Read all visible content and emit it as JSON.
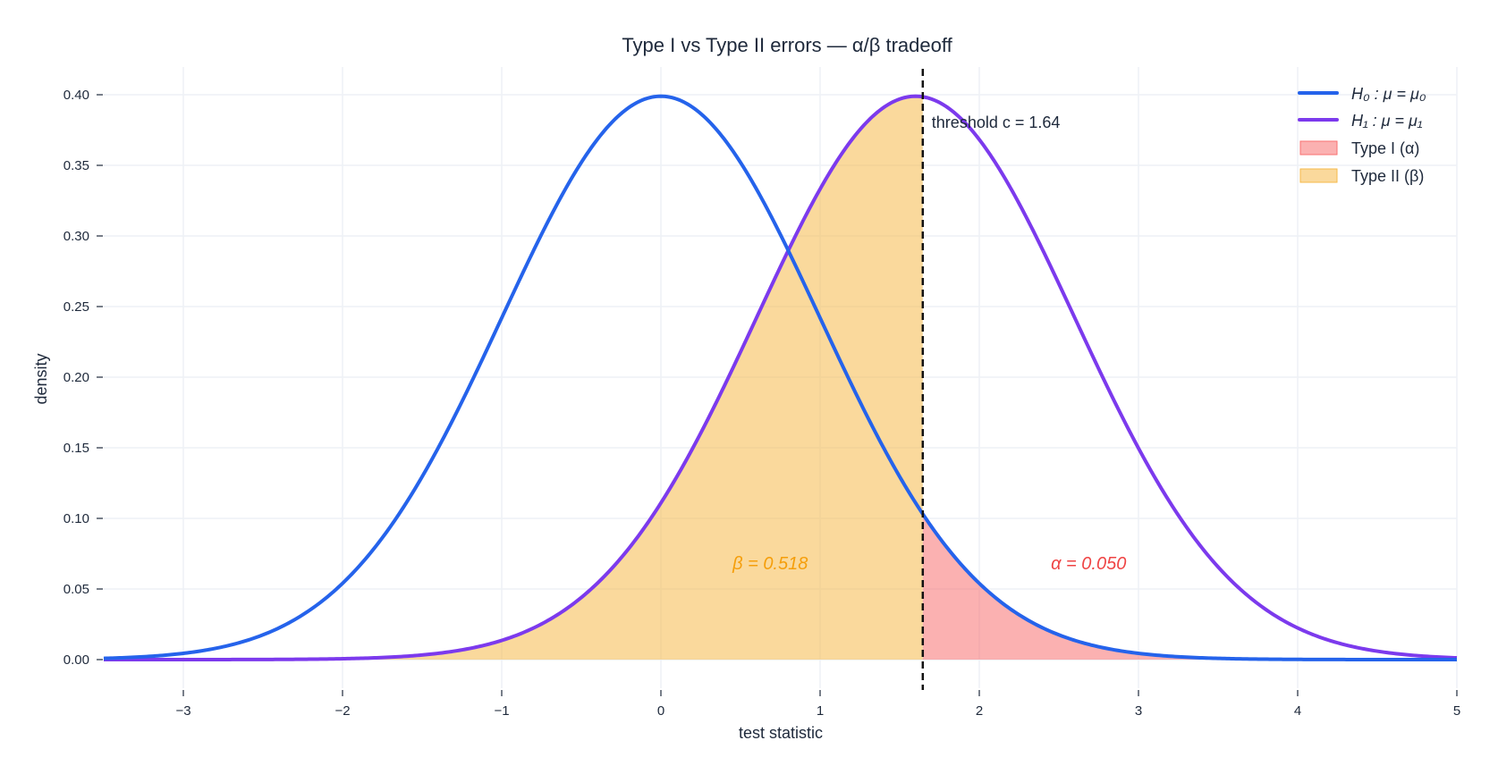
{
  "chart_data": {
    "type": "line",
    "title": "Type I vs Type II errors  —  α/β tradeoff",
    "xlabel": "test statistic",
    "ylabel": "density",
    "xlim": [
      -3.5,
      5
    ],
    "ylim": [
      0,
      0.42
    ],
    "xticks": [
      "−3",
      "−2",
      "−1",
      "0",
      "1",
      "2",
      "3",
      "4",
      "5"
    ],
    "xtick_values": [
      -3,
      -2,
      -1,
      0,
      1,
      2,
      3,
      4,
      5
    ],
    "yticks": [
      "0.00",
      "0.05",
      "0.10",
      "0.15",
      "0.20",
      "0.25",
      "0.30",
      "0.35",
      "0.40"
    ],
    "ytick_values": [
      0,
      0.05,
      0.1,
      0.15,
      0.2,
      0.25,
      0.3,
      0.35,
      0.4
    ],
    "grid": true,
    "legend_placement": "top-right",
    "series": [
      {
        "name": "H₀ : μ = μ₀",
        "distribution": "normal",
        "mean": 0,
        "sd": 1,
        "color": "#2563eb"
      },
      {
        "name": "H₁ : μ = μ₁",
        "distribution": "normal",
        "mean": 1.6,
        "sd": 1,
        "color": "#7c3aed"
      }
    ],
    "areas": [
      {
        "name": "Type I  (α)",
        "under": "H0",
        "from": 1.645,
        "to": 5,
        "color": "#f87171"
      },
      {
        "name": "Type II  (β)",
        "under": "H1",
        "from": -3.5,
        "to": 1.645,
        "color": "#f6b94a"
      }
    ],
    "threshold": {
      "value": 1.645,
      "label": "threshold c = 1.64"
    },
    "annotations": [
      {
        "text": "β = 0.518",
        "x": 0.45,
        "y": 0.064,
        "color": "#f59e0b"
      },
      {
        "text": "α = 0.050",
        "x": 2.45,
        "y": 0.064,
        "color": "#ef4444"
      }
    ]
  }
}
